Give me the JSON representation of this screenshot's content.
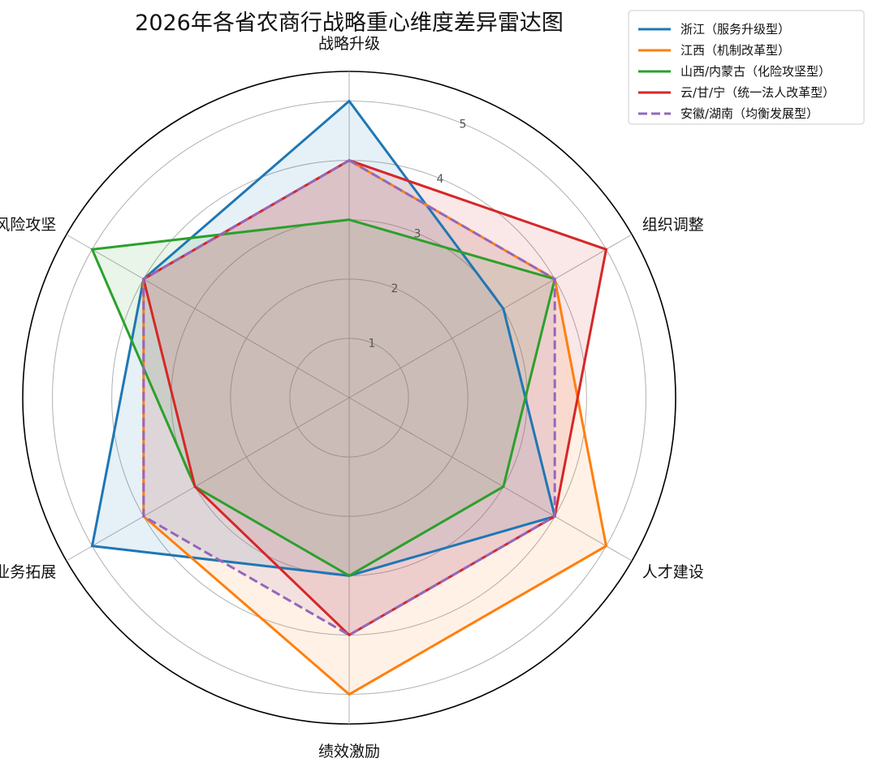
{
  "chart_data": {
    "type": "radar",
    "title": "2026年各省农商行战略重心维度差异雷达图",
    "axes": [
      "战略升级",
      "组织调整",
      "人才建设",
      "绩效激励",
      "业务拓展",
      "风险攻坚"
    ],
    "r_ticks": [
      "1",
      "2",
      "3",
      "4",
      "5"
    ],
    "r_range": [
      0,
      5.5
    ],
    "grid": true,
    "legend_position": "top-right",
    "series": [
      {
        "name": "浙江（服务升级型）",
        "values": [
          5,
          3,
          4,
          3,
          5,
          4
        ],
        "color": "#1f77b4",
        "dash": false
      },
      {
        "name": "江西（机制改革型）",
        "values": [
          4,
          4,
          5,
          5,
          4,
          4
        ],
        "color": "#ff7f0e",
        "dash": false
      },
      {
        "name": "山西/内蒙古（化险攻坚型）",
        "values": [
          3,
          4,
          3,
          3,
          3,
          5
        ],
        "color": "#2ca02c",
        "dash": false
      },
      {
        "name": "云/甘/宁（统一法人改革型）",
        "values": [
          4,
          5,
          4,
          4,
          3,
          4
        ],
        "color": "#d62728",
        "dash": false
      },
      {
        "name": "安徽/湖南（均衡发展型）",
        "values": [
          4,
          4,
          4,
          4,
          4,
          4
        ],
        "color": "#9467bd",
        "dash": true
      }
    ]
  }
}
